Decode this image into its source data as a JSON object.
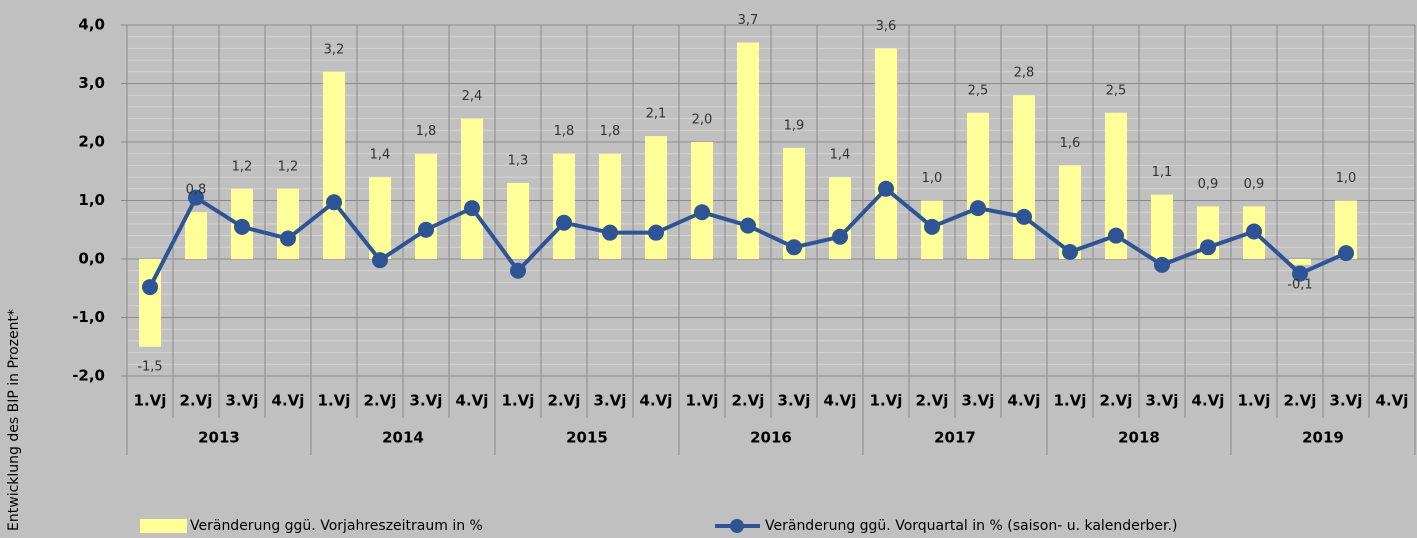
{
  "chart_data": {
    "type": "bar",
    "y_label": "Entwicklung des BIP in Prozent*",
    "categories": [
      "1.Vj",
      "2.Vj",
      "3.Vj",
      "4.Vj",
      "1.Vj",
      "2.Vj",
      "3.Vj",
      "4.Vj",
      "1.Vj",
      "2.Vj",
      "3.Vj",
      "4.Vj",
      "1.Vj",
      "2.Vj",
      "3.Vj",
      "4.Vj",
      "1.Vj",
      "2.Vj",
      "3.Vj",
      "4.Vj",
      "1.Vj",
      "2.Vj",
      "3.Vj",
      "4.Vj",
      "1.Vj",
      "2.Vj",
      "3.Vj",
      "4.Vj"
    ],
    "years": [
      "2013",
      "2014",
      "2015",
      "2016",
      "2017",
      "2018",
      "2019"
    ],
    "series": [
      {
        "name": "Veränderung ggü. Vorjahreszeitraum in %",
        "type": "bar",
        "color": "#ffff99",
        "values": [
          -1.5,
          0.8,
          1.2,
          1.2,
          3.2,
          1.4,
          1.8,
          2.4,
          1.3,
          1.8,
          1.8,
          2.1,
          2.0,
          3.7,
          1.9,
          1.4,
          3.6,
          1.0,
          2.5,
          2.8,
          1.6,
          2.5,
          1.1,
          0.9,
          0.9,
          -0.1,
          1.0,
          null
        ],
        "value_labels": [
          "-1,5",
          "0,8",
          "1,2",
          "1,2",
          "3,2",
          "1,4",
          "1,8",
          "2,4",
          "1,3",
          "1,8",
          "1,8",
          "2,1",
          "2,0",
          "3,7",
          "1,9",
          "1,4",
          "3,6",
          "1,0",
          "2,5",
          "2,8",
          "1,6",
          "2,5",
          "1,1",
          "0,9",
          "0,9",
          "-0,1",
          "1,0",
          null
        ]
      },
      {
        "name": "Veränderung ggü. Vorquartal in % (saison- u. kalenderber.)",
        "type": "line",
        "color": "#2f5496",
        "values": [
          -0.48,
          1.05,
          0.55,
          0.35,
          0.97,
          -0.02,
          0.5,
          0.87,
          -0.2,
          0.62,
          0.45,
          0.45,
          0.8,
          0.57,
          0.2,
          0.38,
          1.2,
          0.55,
          0.87,
          0.72,
          0.12,
          0.4,
          -0.1,
          0.2,
          0.47,
          -0.25,
          0.1,
          null
        ]
      }
    ],
    "ylim": [
      -2,
      4
    ],
    "yticks": [
      {
        "value": -2,
        "label": "-2,0"
      },
      {
        "value": -1,
        "label": "-1,0"
      },
      {
        "value": 0,
        "label": "0,0"
      },
      {
        "value": 1,
        "label": "1,0"
      },
      {
        "value": 2,
        "label": "2,0"
      },
      {
        "value": 3,
        "label": "3,0"
      },
      {
        "value": 4,
        "label": "4,0"
      }
    ],
    "grid": true,
    "minor_grid_step": 0.2,
    "legend": "bottom"
  }
}
